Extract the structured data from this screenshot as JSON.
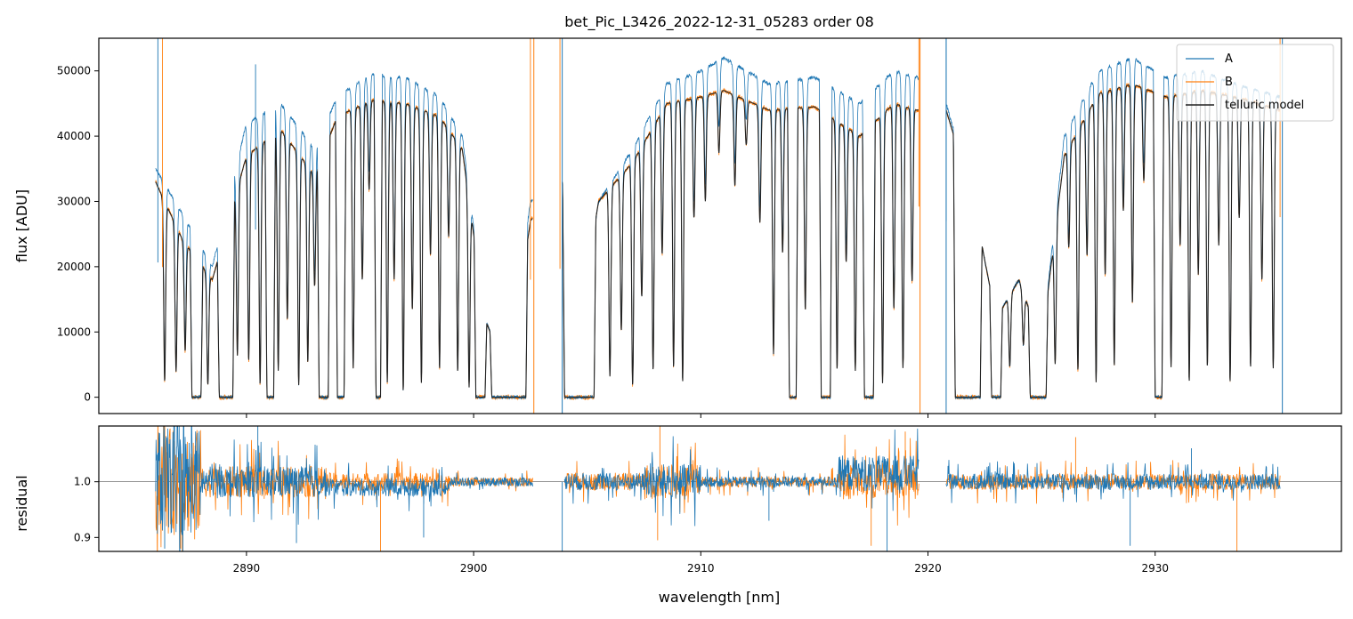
{
  "title": "bet_Pic_L3426_2022-12-31_05283  order 08",
  "colors": {
    "A": "#1f77b4",
    "B": "#ff7f0e",
    "model": "#222222",
    "frame": "#000000"
  },
  "chart_data": [
    {
      "type": "line",
      "panel": "top",
      "ylabel": "flux [ADU]",
      "xlim": [
        2883.5,
        2938.2
      ],
      "ylim": [
        -2500,
        55000
      ],
      "yticks": [
        0,
        10000,
        20000,
        30000,
        40000,
        50000
      ],
      "xticks": [
        2890,
        2900,
        2910,
        2920,
        2930
      ],
      "legend_position": "top-right",
      "series": [
        {
          "name": "A",
          "key": "A"
        },
        {
          "name": "B",
          "key": "B"
        },
        {
          "name": "telluric model",
          "key": "model"
        }
      ],
      "segments": [
        {
          "x0": 2886.0,
          "x1": 2902.6
        },
        {
          "x0": 2903.9,
          "x1": 2919.6
        },
        {
          "x0": 2920.8,
          "x1": 2935.5
        }
      ],
      "continuum": [
        [
          2886.0,
          35000,
          33000
        ],
        [
          2887.2,
          28000,
          24000
        ],
        [
          2888.5,
          20000,
          18000
        ],
        [
          2890.0,
          42000,
          37000
        ],
        [
          2891.5,
          45000,
          41000
        ],
        [
          2893.0,
          38000,
          34000
        ],
        [
          2894.0,
          46000,
          43000
        ],
        [
          2895.5,
          49500,
          45500
        ],
        [
          2897.0,
          49000,
          45000
        ],
        [
          2898.5,
          46000,
          43000
        ],
        [
          2899.5,
          40000,
          38000
        ],
        [
          2900.5,
          12000,
          12000
        ],
        [
          2901.5,
          3000,
          3000
        ],
        [
          2902.5,
          30000,
          27000
        ],
        [
          2903.9,
          33000,
          33000
        ],
        [
          2904.5,
          8000,
          8000
        ],
        [
          2905.5,
          30000,
          30000
        ],
        [
          2907.0,
          38000,
          36000
        ],
        [
          2908.5,
          48000,
          45000
        ],
        [
          2910.0,
          50000,
          46000
        ],
        [
          2911.0,
          52000,
          47000
        ],
        [
          2913.0,
          48000,
          44000
        ],
        [
          2915.0,
          49000,
          44500
        ],
        [
          2917.0,
          45000,
          40000
        ],
        [
          2918.5,
          50000,
          45000
        ],
        [
          2919.5,
          49000,
          44000
        ],
        [
          2920.8,
          45000,
          44000
        ],
        [
          2922.0,
          30000,
          30000
        ],
        [
          2923.0,
          12000,
          12000
        ],
        [
          2924.0,
          18000,
          18000
        ],
        [
          2925.0,
          8000,
          8000
        ],
        [
          2926.0,
          40000,
          37000
        ],
        [
          2927.5,
          50000,
          46500
        ],
        [
          2929.0,
          52000,
          48000
        ],
        [
          2930.5,
          49000,
          46000
        ],
        [
          2932.0,
          50000,
          47000
        ],
        [
          2933.5,
          48000,
          46000
        ],
        [
          2935.5,
          46000,
          44000
        ]
      ],
      "deep_bands": [
        [
          2887.6,
          2888.0
        ],
        [
          2888.8,
          2889.4
        ],
        [
          2890.9,
          2891.2
        ],
        [
          2893.2,
          2893.6
        ],
        [
          2894.0,
          2894.3
        ],
        [
          2895.7,
          2895.9
        ],
        [
          2900.1,
          2900.5
        ],
        [
          2900.8,
          2902.3
        ],
        [
          2904.0,
          2905.3
        ],
        [
          2913.9,
          2914.2
        ],
        [
          2915.3,
          2915.7
        ],
        [
          2917.2,
          2917.6
        ],
        [
          2921.2,
          2922.3
        ],
        [
          2922.8,
          2923.2
        ],
        [
          2924.5,
          2925.2
        ],
        [
          2930.0,
          2930.3
        ]
      ],
      "absorption_lines": [
        [
          2886.4,
          0.92
        ],
        [
          2886.9,
          0.85
        ],
        [
          2887.3,
          0.7
        ],
        [
          2888.3,
          0.9
        ],
        [
          2889.6,
          0.8
        ],
        [
          2890.1,
          0.85
        ],
        [
          2890.6,
          0.95
        ],
        [
          2891.4,
          0.9
        ],
        [
          2891.8,
          0.7
        ],
        [
          2892.3,
          0.95
        ],
        [
          2892.7,
          0.85
        ],
        [
          2893.0,
          0.5
        ],
        [
          2894.7,
          0.9
        ],
        [
          2895.1,
          0.6
        ],
        [
          2895.4,
          0.3
        ],
        [
          2896.2,
          0.95
        ],
        [
          2896.5,
          0.6
        ],
        [
          2896.9,
          0.98
        ],
        [
          2897.3,
          0.7
        ],
        [
          2897.7,
          0.95
        ],
        [
          2898.1,
          0.5
        ],
        [
          2898.5,
          0.9
        ],
        [
          2898.9,
          0.4
        ],
        [
          2899.3,
          0.9
        ],
        [
          2899.8,
          0.95
        ],
        [
          2902.0,
          0.8
        ],
        [
          2906.0,
          0.9
        ],
        [
          2906.5,
          0.7
        ],
        [
          2907.0,
          0.95
        ],
        [
          2907.4,
          0.6
        ],
        [
          2907.9,
          0.9
        ],
        [
          2908.3,
          0.5
        ],
        [
          2908.8,
          0.9
        ],
        [
          2909.2,
          0.95
        ],
        [
          2909.7,
          0.4
        ],
        [
          2910.2,
          0.35
        ],
        [
          2910.8,
          0.2
        ],
        [
          2911.5,
          0.3
        ],
        [
          2912.0,
          0.15
        ],
        [
          2912.6,
          0.4
        ],
        [
          2913.2,
          0.85
        ],
        [
          2913.6,
          0.5
        ],
        [
          2914.6,
          0.7
        ],
        [
          2916.0,
          0.9
        ],
        [
          2916.4,
          0.5
        ],
        [
          2916.8,
          0.9
        ],
        [
          2918.0,
          0.95
        ],
        [
          2918.5,
          0.7
        ],
        [
          2918.9,
          0.9
        ],
        [
          2919.3,
          0.6
        ],
        [
          2921.8,
          0.9
        ],
        [
          2923.6,
          0.7
        ],
        [
          2924.2,
          0.5
        ],
        [
          2925.6,
          0.8
        ],
        [
          2926.2,
          0.4
        ],
        [
          2926.6,
          0.9
        ],
        [
          2927.0,
          0.5
        ],
        [
          2927.4,
          0.95
        ],
        [
          2927.8,
          0.6
        ],
        [
          2928.2,
          0.9
        ],
        [
          2928.6,
          0.4
        ],
        [
          2929.0,
          0.7
        ],
        [
          2929.5,
          0.3
        ],
        [
          2930.7,
          0.9
        ],
        [
          2931.1,
          0.5
        ],
        [
          2931.5,
          0.95
        ],
        [
          2931.9,
          0.6
        ],
        [
          2932.3,
          0.9
        ],
        [
          2932.8,
          0.5
        ],
        [
          2933.3,
          0.95
        ],
        [
          2933.7,
          0.4
        ],
        [
          2934.2,
          0.9
        ],
        [
          2934.7,
          0.6
        ],
        [
          2935.2,
          0.9
        ]
      ],
      "spikes": [
        {
          "x": 2886.1,
          "series": "A",
          "y": 55000
        },
        {
          "x": 2886.3,
          "series": "B",
          "y": 55000
        },
        {
          "x": 2890.4,
          "series": "A",
          "y": 51000
        },
        {
          "x": 2902.5,
          "series": "B",
          "y": 55000
        },
        {
          "x": 2903.8,
          "series": "B",
          "y": 55000
        },
        {
          "x": 2919.6,
          "series": "B",
          "y": 55000
        },
        {
          "x": 2920.8,
          "series": "A",
          "y": 55000
        },
        {
          "x": 2935.5,
          "series": "B",
          "y": 55000
        }
      ],
      "vlines": [
        {
          "x": 2902.65,
          "series": "B"
        },
        {
          "x": 2903.9,
          "series": "A"
        },
        {
          "x": 2919.65,
          "series": "B"
        },
        {
          "x": 2920.8,
          "series": "A"
        },
        {
          "x": 2935.6,
          "series": "A"
        }
      ]
    },
    {
      "type": "line",
      "panel": "bottom",
      "xlabel": "wavelength [nm]",
      "ylabel": "residual",
      "xlim": [
        2883.5,
        2938.2
      ],
      "ylim": [
        0.875,
        1.1
      ],
      "yticks": [
        0.9,
        1.0
      ],
      "yticklabels": [
        "0.9",
        "1.0"
      ],
      "xticks": [
        2890,
        2900,
        2910,
        2920,
        2930
      ],
      "reference_line": 1.0,
      "series": [
        {
          "name": "A",
          "key": "A"
        },
        {
          "name": "B",
          "key": "B"
        }
      ],
      "noise_zones": [
        [
          2886.0,
          2888.0,
          0.12
        ],
        [
          2888.0,
          2893.5,
          0.035
        ],
        [
          2893.5,
          2899.0,
          0.02
        ],
        [
          2899.0,
          2902.6,
          0.01
        ],
        [
          2904.0,
          2907.5,
          0.02
        ],
        [
          2907.5,
          2910.0,
          0.04
        ],
        [
          2910.0,
          2916.0,
          0.012
        ],
        [
          2916.0,
          2919.6,
          0.04
        ],
        [
          2920.8,
          2935.5,
          0.018
        ]
      ],
      "residual_spikes": [
        [
          2886.4,
          0.88,
          "A"
        ],
        [
          2887.1,
          0.88,
          "B"
        ],
        [
          2890.5,
          1.1,
          "A"
        ],
        [
          2892.2,
          0.89,
          "A"
        ],
        [
          2895.9,
          0.875,
          "B"
        ],
        [
          2897.8,
          0.9,
          "A"
        ],
        [
          2903.9,
          0.875,
          "A"
        ],
        [
          2908.2,
          1.1,
          "B"
        ],
        [
          2908.1,
          0.895,
          "B"
        ],
        [
          2913.0,
          0.93,
          "A"
        ],
        [
          2917.5,
          0.885,
          "B"
        ],
        [
          2918.2,
          0.875,
          "A"
        ],
        [
          2919.0,
          1.09,
          "B"
        ],
        [
          2926.5,
          1.08,
          "B"
        ],
        [
          2928.9,
          0.885,
          "A"
        ],
        [
          2931.6,
          1.06,
          "A"
        ],
        [
          2933.6,
          0.875,
          "B"
        ]
      ]
    }
  ]
}
